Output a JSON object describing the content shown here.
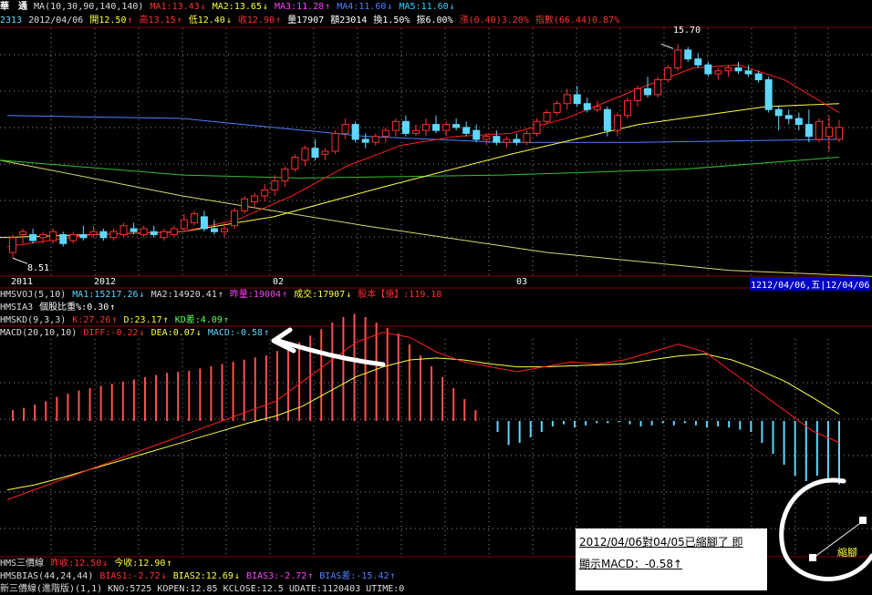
{
  "header": {
    "name": "華　通",
    "ma_label": "MA(10,30,90,140,140)",
    "ma1": "MA1:13.43",
    "ma2": "MA2:13.65",
    "ma3": "MA3:11.28",
    "ma4": "MA4:11.60",
    "ma5": "MA5:11.60",
    "code": "2313",
    "date": "2012/04/06",
    "open": "開12.50",
    "high": "高13.15",
    "low": "低12.40",
    "close": "收12.90",
    "volume": "量17907",
    "amount": "額23014",
    "turnover": "換1.50%",
    "amplitude": "振6.00%",
    "change": "漲(0.40)3.20%",
    "index": "指數(66.44)0.87%"
  },
  "price_chart": {
    "high_label": "15.70",
    "low_label": "8.51",
    "x_labels": {
      "y2011": "2011",
      "y2012": "2012",
      "m02": "02",
      "m03": "03"
    },
    "date_box": "12/04/06,五",
    "date_box2": "12/04/06"
  },
  "indicators": {
    "vol": {
      "label": "HMSVOJ(5,10)",
      "ma1": "MA1:15217.26",
      "ma2": "MA2:14920.41",
      "prev": "昨量:19004",
      "deal": "成交:17907",
      "equity": "股本【億】:119.18"
    },
    "sia": {
      "label": "HMSIA3",
      "value": "個股比重%:0.30"
    },
    "kd": {
      "label": "HMSKD(9,3,3)",
      "k": "K:27.26",
      "d": "D:23.17",
      "diff": "KD差:4.09"
    },
    "macd": {
      "label": "MACD(20,10,10)",
      "diff": "DIFF:-0.22",
      "dea": "DEA:0.07",
      "macd": "MACD:-0.58"
    }
  },
  "bottom": {
    "price3": {
      "label": "HMS三價線",
      "prev": "昨收:12.50",
      "now": "今收:12.90"
    },
    "bias": {
      "label": "HMSBIAS(44,24,44)",
      "b1": "BIAS1:-2.72",
      "b2": "BIAS2:12.69",
      "b3": "BIAS3:-2.72",
      "bd": "BIAS差:-15.42"
    },
    "last": {
      "text": "新三價線(進階版)(1,1)  KNO:5725  KOPEN:12.85  KCLOSE:12.5  UDATE:1120403  UTIME:0"
    }
  },
  "annotation": {
    "line1": "2012/04/06對04/05已縮腳了 即",
    "line2": "顯示MACD：-0.58↑",
    "callout": "縮腳"
  },
  "chart_data": {
    "type": "candlestick",
    "candles": [
      [
        8.7,
        9.3,
        8.51,
        9.2
      ],
      [
        9.3,
        9.5,
        9.0,
        9.4
      ],
      [
        9.3,
        9.5,
        9.0,
        9.1
      ],
      [
        9.2,
        9.4,
        9.0,
        9.3
      ],
      [
        9.1,
        9.5,
        9.0,
        9.4
      ],
      [
        9.3,
        9.4,
        8.9,
        9.0
      ],
      [
        9.1,
        9.4,
        9.0,
        9.3
      ],
      [
        9.3,
        9.6,
        9.1,
        9.2
      ],
      [
        9.3,
        9.6,
        9.2,
        9.4
      ],
      [
        9.4,
        9.5,
        9.1,
        9.2
      ],
      [
        9.2,
        9.5,
        9.1,
        9.4
      ],
      [
        9.3,
        9.7,
        9.2,
        9.6
      ],
      [
        9.5,
        9.7,
        9.3,
        9.4
      ],
      [
        9.3,
        9.6,
        9.2,
        9.5
      ],
      [
        9.4,
        9.6,
        9.2,
        9.3
      ],
      [
        9.2,
        9.5,
        9.1,
        9.4
      ],
      [
        9.3,
        9.6,
        9.2,
        9.5
      ],
      [
        9.5,
        10.0,
        9.4,
        9.8
      ],
      [
        9.7,
        10.1,
        9.6,
        10.0
      ],
      [
        9.9,
        10.1,
        9.4,
        9.5
      ],
      [
        9.5,
        9.8,
        9.3,
        9.4
      ],
      [
        9.4,
        9.7,
        9.2,
        9.5
      ],
      [
        9.6,
        10.2,
        9.5,
        10.1
      ],
      [
        10.1,
        10.6,
        10.0,
        10.5
      ],
      [
        10.4,
        10.7,
        10.2,
        10.6
      ],
      [
        10.6,
        11.0,
        10.4,
        10.8
      ],
      [
        10.8,
        11.3,
        10.6,
        11.1
      ],
      [
        11.1,
        11.6,
        10.9,
        11.5
      ],
      [
        11.5,
        12.0,
        11.4,
        11.9
      ],
      [
        11.8,
        12.3,
        11.6,
        12.2
      ],
      [
        12.2,
        12.5,
        11.8,
        11.9
      ],
      [
        12.0,
        12.2,
        11.8,
        12.1
      ],
      [
        12.1,
        12.8,
        12.0,
        12.7
      ],
      [
        12.7,
        13.2,
        12.5,
        13.0
      ],
      [
        13.0,
        13.1,
        12.4,
        12.5
      ],
      [
        12.5,
        12.7,
        12.2,
        12.4
      ],
      [
        12.4,
        12.7,
        12.3,
        12.6
      ],
      [
        12.6,
        12.9,
        12.4,
        12.8
      ],
      [
        12.8,
        13.2,
        12.6,
        13.1
      ],
      [
        13.1,
        13.3,
        12.6,
        12.7
      ],
      [
        12.7,
        13.0,
        12.6,
        12.8
      ],
      [
        12.8,
        13.2,
        12.6,
        13.0
      ],
      [
        13.0,
        13.3,
        12.7,
        12.8
      ],
      [
        12.8,
        13.1,
        12.6,
        13.0
      ],
      [
        13.0,
        13.2,
        12.8,
        12.9
      ],
      [
        12.9,
        13.1,
        12.6,
        12.7
      ],
      [
        12.8,
        13.0,
        12.4,
        12.5
      ],
      [
        12.5,
        12.7,
        12.3,
        12.6
      ],
      [
        12.6,
        12.8,
        12.3,
        12.4
      ],
      [
        12.4,
        12.6,
        12.2,
        12.5
      ],
      [
        12.5,
        12.7,
        12.3,
        12.4
      ],
      [
        12.4,
        12.8,
        12.3,
        12.7
      ],
      [
        12.7,
        13.2,
        12.6,
        13.1
      ],
      [
        13.1,
        13.5,
        13.0,
        13.4
      ],
      [
        13.4,
        13.8,
        13.3,
        13.7
      ],
      [
        13.7,
        14.2,
        13.5,
        14.0
      ],
      [
        14.0,
        14.3,
        13.6,
        13.7
      ],
      [
        13.7,
        13.9,
        13.4,
        13.5
      ],
      [
        13.5,
        13.8,
        13.4,
        13.6
      ],
      [
        13.5,
        13.6,
        12.6,
        12.8
      ],
      [
        12.8,
        13.4,
        12.6,
        13.3
      ],
      [
        13.3,
        13.9,
        13.2,
        13.8
      ],
      [
        13.8,
        14.3,
        13.6,
        14.2
      ],
      [
        14.2,
        14.6,
        13.9,
        14.0
      ],
      [
        14.0,
        14.6,
        13.9,
        14.5
      ],
      [
        14.5,
        15.0,
        14.4,
        14.9
      ],
      [
        14.9,
        15.7,
        14.8,
        15.5
      ],
      [
        15.5,
        15.6,
        15.1,
        15.2
      ],
      [
        15.2,
        15.4,
        14.9,
        15.0
      ],
      [
        15.0,
        15.1,
        14.6,
        14.7
      ],
      [
        14.7,
        14.9,
        14.5,
        14.8
      ],
      [
        14.8,
        15.0,
        14.6,
        14.9
      ],
      [
        14.9,
        15.1,
        14.7,
        14.8
      ],
      [
        14.8,
        15.0,
        14.6,
        14.7
      ],
      [
        14.7,
        14.8,
        14.4,
        14.5
      ],
      [
        14.5,
        14.6,
        13.4,
        13.5
      ],
      [
        13.5,
        13.6,
        12.8,
        13.3
      ],
      [
        13.3,
        13.5,
        13.0,
        13.2
      ],
      [
        13.2,
        13.4,
        12.8,
        13.0
      ],
      [
        13.0,
        13.5,
        12.4,
        12.6
      ],
      [
        12.5,
        13.2,
        12.4,
        13.1
      ],
      [
        12.6,
        13.3,
        12.1,
        12.9
      ],
      [
        12.5,
        13.15,
        12.4,
        12.9
      ]
    ],
    "macd_hist": [
      0.1,
      0.12,
      0.15,
      0.18,
      0.22,
      0.25,
      0.28,
      0.3,
      0.32,
      0.34,
      0.36,
      0.38,
      0.4,
      0.42,
      0.44,
      0.45,
      0.46,
      0.48,
      0.5,
      0.52,
      0.54,
      0.56,
      0.58,
      0.6,
      0.64,
      0.68,
      0.72,
      0.78,
      0.84,
      0.9,
      0.95,
      0.98,
      0.95,
      0.9,
      0.85,
      0.8,
      0.7,
      0.6,
      0.5,
      0.4,
      0.3,
      0.2,
      0.1,
      0.0,
      -0.1,
      -0.22,
      -0.2,
      -0.15,
      -0.1,
      -0.05,
      -0.03,
      -0.06,
      -0.04,
      -0.02,
      -0.02,
      -0.01,
      -0.03,
      -0.05,
      -0.04,
      -0.02,
      -0.04,
      -0.02,
      -0.04,
      -0.06,
      -0.05,
      -0.06,
      -0.08,
      -0.1,
      -0.2,
      -0.3,
      -0.4,
      -0.5,
      -0.55,
      -0.5,
      -0.56,
      -0.58
    ],
    "diff": [
      -0.8,
      -0.7,
      -0.6,
      -0.5,
      -0.4,
      -0.3,
      -0.2,
      -0.1,
      0.0,
      0.1,
      0.2,
      0.4,
      0.6,
      0.8,
      0.9,
      0.85,
      0.7,
      0.6,
      0.55,
      0.5,
      0.55,
      0.6,
      0.58,
      0.62,
      0.7,
      0.78,
      0.7,
      0.5,
      0.3,
      0.1,
      -0.1,
      -0.22
    ],
    "dea": [
      -0.7,
      -0.65,
      -0.58,
      -0.5,
      -0.42,
      -0.34,
      -0.26,
      -0.18,
      -0.1,
      -0.02,
      0.05,
      0.15,
      0.3,
      0.45,
      0.55,
      0.62,
      0.64,
      0.62,
      0.58,
      0.55,
      0.55,
      0.56,
      0.57,
      0.58,
      0.62,
      0.66,
      0.68,
      0.62,
      0.52,
      0.4,
      0.24,
      0.07
    ]
  }
}
